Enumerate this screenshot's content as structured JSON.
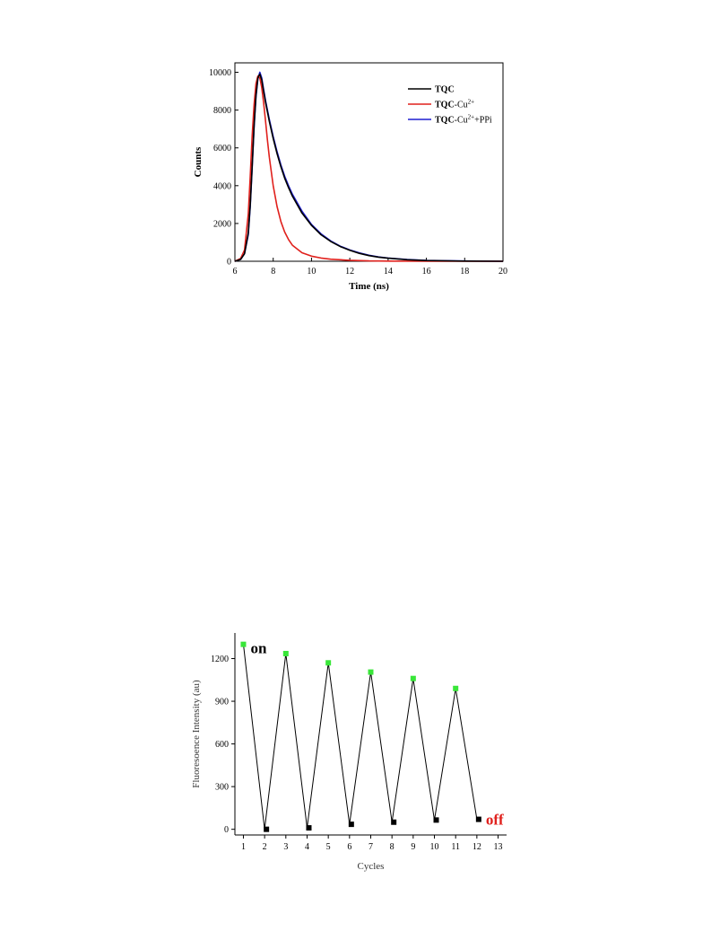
{
  "chart_data": [
    {
      "type": "line",
      "title": "",
      "xlabel": "Time (ns)",
      "ylabel": "Counts",
      "xlim": [
        6,
        20
      ],
      "ylim": [
        0,
        10500
      ],
      "xticks": [
        6,
        8,
        10,
        12,
        14,
        16,
        18,
        20
      ],
      "xtick_labels": [
        "6",
        "8",
        "10",
        "12",
        "14",
        "16",
        "18",
        "20"
      ],
      "yticks": [
        0,
        2000,
        4000,
        6000,
        8000,
        10000
      ],
      "ytick_labels": [
        "0",
        "2000",
        "4000",
        "6000",
        "8000",
        "10000"
      ],
      "legend_placement": "top-right",
      "series": [
        {
          "name": "TQC",
          "legend_bold": "TQC",
          "legend_rest": "",
          "legend_sup": "",
          "legend_tail": "",
          "color": "#000000",
          "x": [
            6.0,
            6.3,
            6.5,
            6.7,
            6.8,
            6.9,
            7.0,
            7.1,
            7.2,
            7.3,
            7.4,
            7.5,
            7.6,
            7.8,
            8.0,
            8.2,
            8.4,
            8.6,
            8.8,
            9.0,
            9.5,
            10.0,
            10.5,
            11.0,
            11.5,
            12.0,
            12.5,
            13.0,
            13.5,
            14.0,
            15.0,
            16.0,
            18.0,
            20.0
          ],
          "y": [
            0,
            100,
            400,
            1500,
            3000,
            5000,
            7200,
            8800,
            9700,
            9900,
            9600,
            9000,
            8400,
            7400,
            6500,
            5700,
            5000,
            4400,
            3900,
            3450,
            2550,
            1900,
            1400,
            1050,
            780,
            580,
            420,
            300,
            220,
            160,
            80,
            40,
            10,
            0
          ]
        },
        {
          "name": "TQC-Cu2+",
          "legend_bold": "TQC",
          "legend_rest": "-Cu",
          "legend_sup": "2+",
          "legend_tail": "",
          "color": "#e0201c",
          "x": [
            6.0,
            6.3,
            6.5,
            6.7,
            6.8,
            6.9,
            7.0,
            7.1,
            7.2,
            7.3,
            7.4,
            7.5,
            7.6,
            7.7,
            7.8,
            8.0,
            8.2,
            8.4,
            8.6,
            8.8,
            9.0,
            9.5,
            10.0,
            10.5,
            11.0,
            12.0,
            13.0,
            14.0,
            16.0,
            20.0
          ],
          "y": [
            0,
            150,
            600,
            2500,
            4500,
            6600,
            8300,
            9400,
            9800,
            9700,
            9200,
            8400,
            7400,
            6400,
            5500,
            4000,
            2900,
            2100,
            1550,
            1150,
            850,
            450,
            270,
            170,
            110,
            50,
            20,
            10,
            0,
            0
          ]
        },
        {
          "name": "TQC-Cu2++PPi",
          "legend_bold": "TQC",
          "legend_rest": "-Cu",
          "legend_sup": "2+",
          "legend_tail": "+PPi",
          "color": "#1f1fd0",
          "x": [
            6.0,
            6.3,
            6.5,
            6.7,
            6.8,
            6.9,
            7.0,
            7.1,
            7.2,
            7.3,
            7.4,
            7.5,
            7.6,
            7.8,
            8.0,
            8.2,
            8.4,
            8.6,
            8.8,
            9.0,
            9.5,
            10.0,
            10.5,
            11.0,
            11.5,
            12.0,
            12.5,
            13.0,
            13.5,
            14.0,
            15.0,
            16.0,
            18.0,
            20.0
          ],
          "y": [
            0,
            100,
            400,
            1400,
            2900,
            4900,
            7100,
            8700,
            9650,
            10000,
            9700,
            9100,
            8500,
            7500,
            6600,
            5800,
            5100,
            4500,
            4000,
            3550,
            2650,
            1950,
            1450,
            1080,
            800,
            600,
            440,
            320,
            230,
            170,
            90,
            45,
            12,
            0
          ]
        }
      ]
    },
    {
      "type": "line",
      "title": "",
      "xlabel": "Cycles",
      "ylabel": "Fluoresoence Intensity (au)",
      "xlim": [
        0.6,
        13.4
      ],
      "ylim": [
        -40,
        1380
      ],
      "xticks": [
        1,
        2,
        3,
        4,
        5,
        6,
        7,
        8,
        9,
        10,
        11,
        12,
        13
      ],
      "xtick_labels": [
        "1",
        "2",
        "3",
        "4",
        "5",
        "6",
        "7",
        "8",
        "9",
        "10",
        "11",
        "12",
        "13"
      ],
      "yticks": [
        0,
        300,
        600,
        900,
        1200
      ],
      "ytick_labels": [
        "0",
        "300",
        "600",
        "900",
        "1200"
      ],
      "line_color": "#000000",
      "series": [
        {
          "name": "",
          "x": [
            1,
            2,
            3,
            4,
            5,
            6,
            7,
            8,
            9,
            10,
            11,
            12
          ],
          "y": [
            1300,
            0,
            1235,
            10,
            1170,
            35,
            1105,
            50,
            1060,
            65,
            990,
            70
          ]
        }
      ],
      "on_marker_color": "#39e639",
      "off_marker_color": "#000000",
      "annotations": [
        {
          "text": "on",
          "color": "#000000",
          "x": 1,
          "y": 1300
        },
        {
          "text": "off",
          "color": "#e0201c",
          "x": 12,
          "y": 70
        }
      ]
    }
  ]
}
